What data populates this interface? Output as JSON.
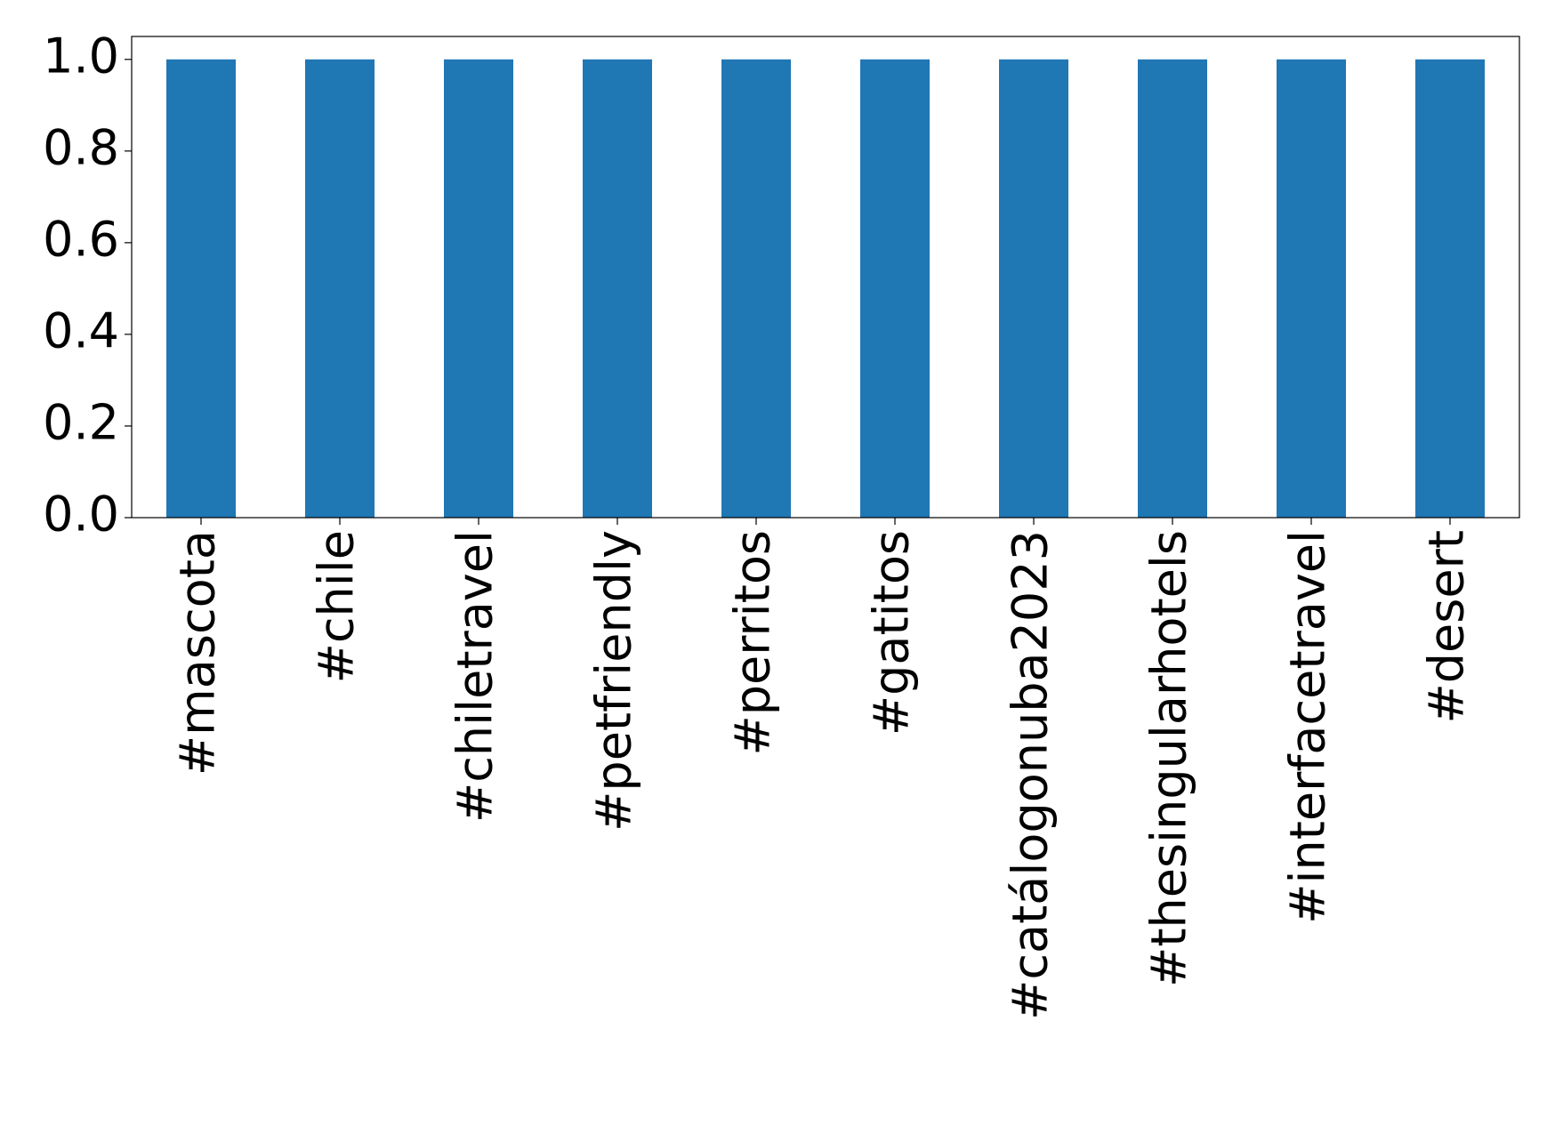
{
  "chart_data": {
    "type": "bar",
    "categories": [
      "#mascota",
      "#chile",
      "#chiletravel",
      "#petfriendly",
      "#perritos",
      "#gatitos",
      "#catálogonuba2023",
      "#thesingularhotels",
      "#interfacetravel",
      "#desert"
    ],
    "values": [
      1,
      1,
      1,
      1,
      1,
      1,
      1,
      1,
      1,
      1
    ],
    "color": "#1f77b4",
    "ylim": [
      0,
      1.05
    ],
    "yticks": [
      {
        "value": 0,
        "label": "0.0"
      },
      {
        "value": 0.2,
        "label": "0.2"
      },
      {
        "value": 0.4,
        "label": "0.4"
      },
      {
        "value": 0.6,
        "label": "0.6"
      },
      {
        "value": 0.8,
        "label": "0.8"
      },
      {
        "value": 1,
        "label": "1.0"
      }
    ],
    "grid": false
  }
}
